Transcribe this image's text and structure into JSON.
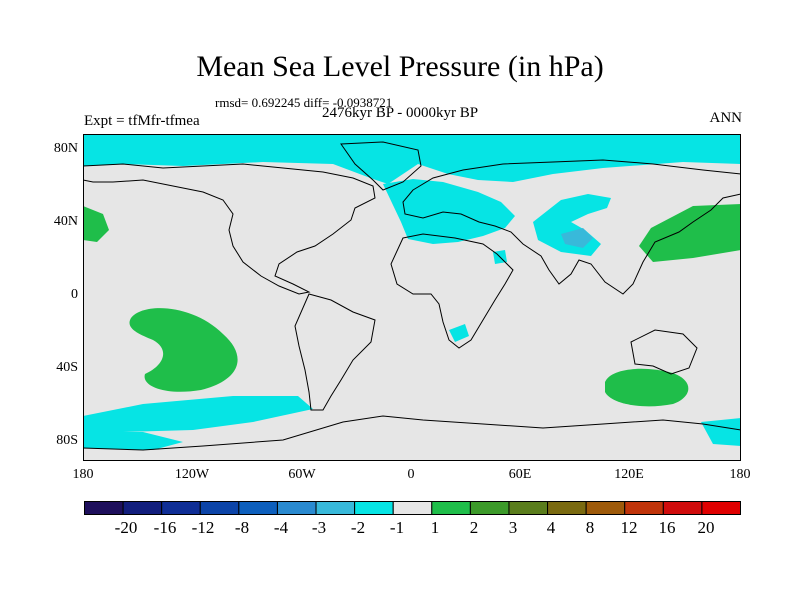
{
  "title": "Mean Sea Level Pressure (in hPa)",
  "stats": "rmsd= 0.692245  diff= -0.0938721",
  "period": "2476kyr BP - 0000kyr BP",
  "experiment": "Expt = tfMfr-tfmea",
  "season": "ANN",
  "y_ticks": [
    "80N",
    "40N",
    "0",
    "40S",
    "80S"
  ],
  "x_ticks": [
    "180",
    "120W",
    "60W",
    "0",
    "60E",
    "120E",
    "180"
  ],
  "colorbar": {
    "labels": [
      "-20",
      "-16",
      "-12",
      "-8",
      "-4",
      "-3",
      "-2",
      "-1",
      "1",
      "2",
      "3",
      "4",
      "8",
      "12",
      "16",
      "20"
    ],
    "colors": [
      "#1e0f5c",
      "#121e7d",
      "#0f2e96",
      "#0c44a8",
      "#0d5fbd",
      "#2a8ad0",
      "#38b9da",
      "#06e4e4",
      "#e6e6e6",
      "#1fbe4a",
      "#3c9a2a",
      "#5a7d1c",
      "#7a6a10",
      "#9e5a0a",
      "#c0340a",
      "#d00c0c",
      "#e00000"
    ]
  },
  "map_colors": {
    "background": "#e6e6e6",
    "neg_weak": "#06e4e4",
    "neg_mid": "#38b9da",
    "pos_weak": "#1fbe4a"
  }
}
